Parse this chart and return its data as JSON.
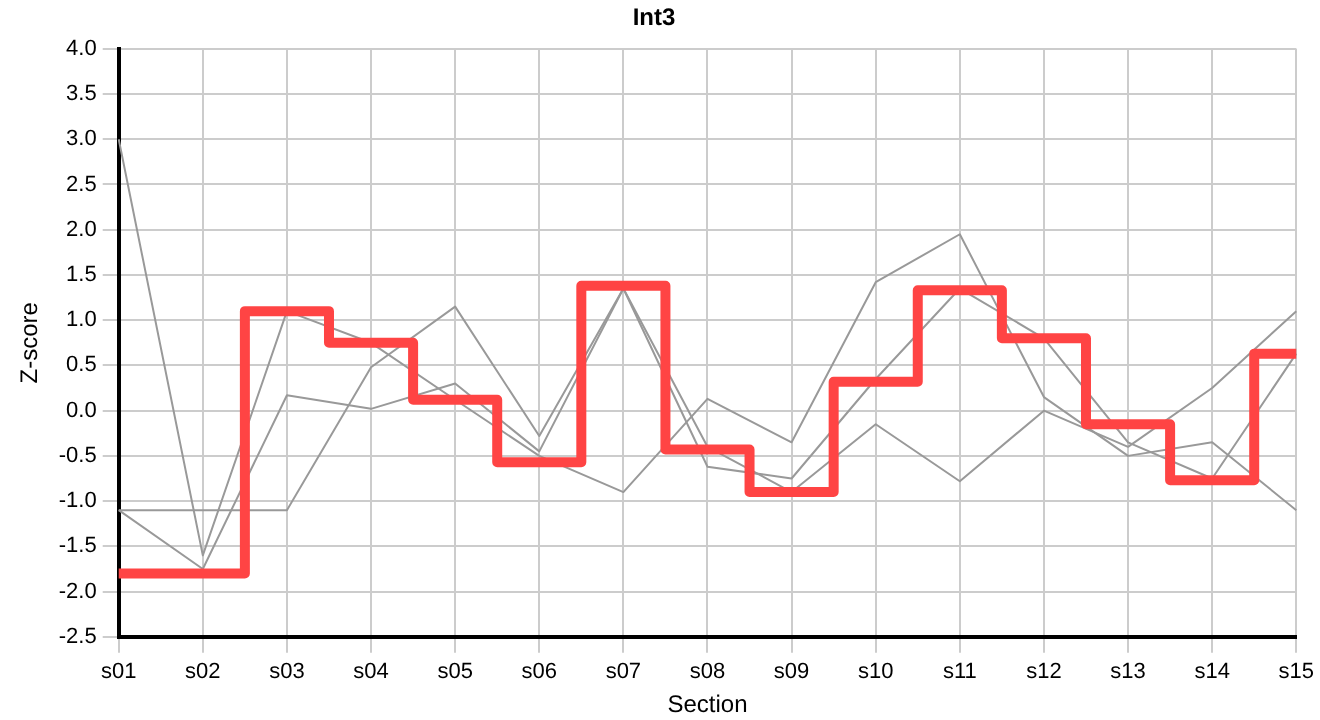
{
  "chart_data": {
    "type": "line",
    "title": "Int3",
    "xlabel": "Section",
    "ylabel": "Z-score",
    "categories": [
      "s01",
      "s02",
      "s03",
      "s04",
      "s05",
      "s06",
      "s07",
      "s08",
      "s09",
      "s10",
      "s11",
      "s12",
      "s13",
      "s14",
      "s15"
    ],
    "series": [
      {
        "type": "line",
        "color": "#999999",
        "values": [
          3.0,
          -1.6,
          1.1,
          0.75,
          0.12,
          -0.5,
          -0.9,
          0.13,
          -0.35,
          1.42,
          1.95,
          0.15,
          -0.5,
          -0.35,
          -1.1
        ]
      },
      {
        "type": "line",
        "color": "#999999",
        "values": [
          -1.1,
          -1.75,
          0.17,
          0.02,
          0.3,
          -0.45,
          1.35,
          -0.62,
          -0.75,
          0.35,
          1.35,
          0.8,
          -0.35,
          -0.75,
          0.63
        ]
      },
      {
        "type": "line",
        "color": "#999999",
        "values": [
          -1.1,
          -1.1,
          -1.1,
          0.48,
          1.15,
          -0.28,
          1.35,
          -0.4,
          -0.9,
          -0.15,
          -0.78,
          0.0,
          -0.4,
          0.25,
          1.1
        ]
      },
      {
        "type": "step",
        "color": "#ff4444",
        "values": [
          -1.8,
          -1.8,
          1.1,
          0.75,
          0.12,
          -0.57,
          1.38,
          -0.43,
          -0.9,
          0.32,
          1.33,
          0.8,
          -0.15,
          -0.77,
          0.63
        ]
      }
    ],
    "ylim": [
      -2.5,
      4.0
    ],
    "yticks": [
      -2.5,
      {
        "value": -2,
        "label": "-2.0"
      },
      -1.5,
      {
        "value": -1,
        "label": "-1.0"
      },
      -0.5,
      {
        "value": 0,
        "label": "0.0"
      },
      0.5,
      {
        "value": 1,
        "label": "1.0"
      },
      1.5,
      {
        "value": 2,
        "label": "2.0"
      },
      2.5,
      {
        "value": 3,
        "label": "3.0"
      },
      3.5,
      {
        "value": 4,
        "label": "4.0"
      }
    ],
    "grid": true,
    "legend": false,
    "marker": "none",
    "line_style": "solid"
  }
}
